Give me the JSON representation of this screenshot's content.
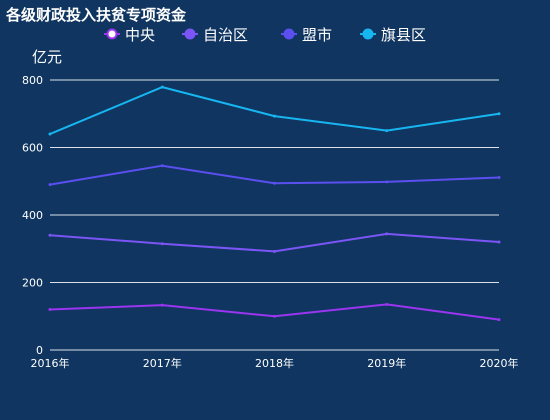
{
  "chart_data": {
    "type": "line",
    "title": "各级财政投入扶贫专项资金",
    "ylabel": "亿元",
    "xlabel": "",
    "categories": [
      "2016年",
      "2017年",
      "2018年",
      "2019年",
      "2020年"
    ],
    "ylim": [
      0,
      800
    ],
    "yticks": [
      0,
      200,
      400,
      600,
      800
    ],
    "grid": true,
    "legend_position": "top",
    "series": [
      {
        "name": "中央",
        "color": "#9a35f0",
        "values": [
          120,
          133,
          100,
          135,
          90
        ]
      },
      {
        "name": "自治区",
        "color": "#7b55f5",
        "values": [
          340,
          315,
          292,
          344,
          320
        ]
      },
      {
        "name": "盟市",
        "color": "#5b4ff0",
        "values": [
          490,
          546,
          494,
          498,
          511
        ]
      },
      {
        "name": "旗县区",
        "color": "#18b6f0",
        "values": [
          640,
          779,
          693,
          650,
          700
        ]
      }
    ]
  }
}
